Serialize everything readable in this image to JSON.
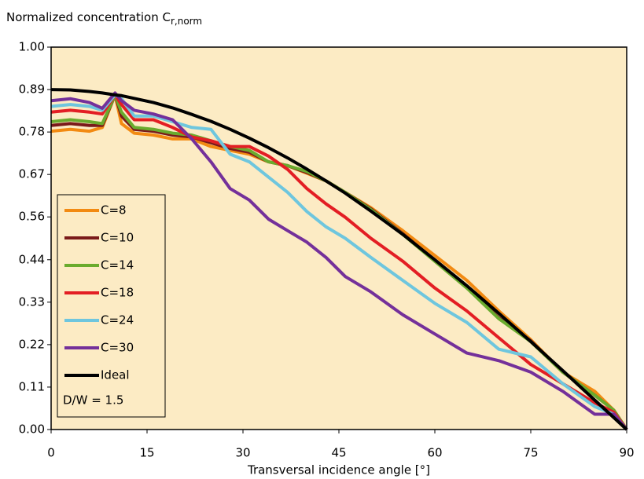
{
  "chart_data": {
    "type": "line",
    "title": "Normalized concentration C",
    "title_subscript": "r,norm",
    "x_label": "Transversal incidence angle [°]",
    "annotation": "D/W = 1.5",
    "xlim": [
      0,
      90
    ],
    "xticks": [
      0,
      15,
      30,
      45,
      60,
      75,
      90
    ],
    "ylim": [
      0,
      1
    ],
    "yticks": [
      {
        "value": 0,
        "label": "0.00"
      },
      {
        "value": 0.111,
        "label": "0.11"
      },
      {
        "value": 0.222,
        "label": "0.22"
      },
      {
        "value": 0.333,
        "label": "0.33"
      },
      {
        "value": 0.444,
        "label": "0.44"
      },
      {
        "value": 0.556,
        "label": "0.56"
      },
      {
        "value": 0.667,
        "label": "0.67"
      },
      {
        "value": 0.778,
        "label": "0.78"
      },
      {
        "value": 0.889,
        "label": "0.89"
      },
      {
        "value": 1,
        "label": "1.00"
      }
    ],
    "background": "#fcebc4",
    "x": [
      0,
      3,
      6,
      8,
      10,
      11,
      13,
      16,
      19,
      22,
      25,
      28,
      31,
      34,
      37,
      40,
      43,
      46,
      50,
      55,
      60,
      65,
      70,
      75,
      80,
      85,
      88,
      90
    ],
    "series": [
      {
        "name": "C=8",
        "color": "#f28a12",
        "values": [
          0.78,
          0.785,
          0.78,
          0.79,
          0.875,
          0.8,
          0.775,
          0.77,
          0.76,
          0.76,
          0.74,
          0.73,
          0.72,
          0.7,
          0.69,
          0.67,
          0.65,
          0.62,
          0.58,
          0.52,
          0.455,
          0.39,
          0.31,
          0.235,
          0.15,
          0.1,
          0.05,
          0
        ]
      },
      {
        "name": "C=10",
        "color": "#7a1a1a",
        "values": [
          0.795,
          0.8,
          0.795,
          0.795,
          0.875,
          0.82,
          0.785,
          0.78,
          0.77,
          0.765,
          0.75,
          0.735,
          0.725,
          0.7,
          0.69,
          0.672,
          0.65,
          0.62,
          0.577,
          0.512,
          0.442,
          0.372,
          0.292,
          0.232,
          0.15,
          0.09,
          0.05,
          0
        ]
      },
      {
        "name": "C=14",
        "color": "#6aab2e",
        "values": [
          0.805,
          0.81,
          0.805,
          0.8,
          0.875,
          0.83,
          0.79,
          0.785,
          0.775,
          0.77,
          0.755,
          0.74,
          0.73,
          0.7,
          0.69,
          0.675,
          0.65,
          0.62,
          0.575,
          0.51,
          0.44,
          0.37,
          0.29,
          0.23,
          0.15,
          0.09,
          0.05,
          0
        ]
      },
      {
        "name": "C=18",
        "color": "#e31e24",
        "values": [
          0.83,
          0.835,
          0.83,
          0.825,
          0.875,
          0.85,
          0.81,
          0.81,
          0.79,
          0.765,
          0.755,
          0.74,
          0.74,
          0.715,
          0.68,
          0.63,
          0.59,
          0.555,
          0.5,
          0.44,
          0.37,
          0.31,
          0.24,
          0.17,
          0.12,
          0.07,
          0.045,
          0
        ]
      },
      {
        "name": "C=24",
        "color": "#6ec6de",
        "values": [
          0.845,
          0.85,
          0.845,
          0.835,
          0.875,
          0.865,
          0.82,
          0.82,
          0.805,
          0.79,
          0.785,
          0.72,
          0.7,
          0.66,
          0.62,
          0.57,
          0.53,
          0.5,
          0.45,
          0.39,
          0.33,
          0.28,
          0.21,
          0.19,
          0.12,
          0.06,
          0.04,
          0
        ]
      },
      {
        "name": "C=30",
        "color": "#74309a",
        "values": [
          0.86,
          0.865,
          0.855,
          0.84,
          0.88,
          0.86,
          0.835,
          0.825,
          0.81,
          0.76,
          0.7,
          0.63,
          0.6,
          0.55,
          0.52,
          0.49,
          0.45,
          0.4,
          0.36,
          0.3,
          0.25,
          0.2,
          0.18,
          0.15,
          0.1,
          0.04,
          0.04,
          0
        ]
      },
      {
        "name": "Ideal",
        "color": "#000000",
        "values": [
          0.889,
          0.888,
          0.884,
          0.88,
          0.875,
          0.873,
          0.866,
          0.855,
          0.841,
          0.824,
          0.806,
          0.785,
          0.762,
          0.737,
          0.71,
          0.681,
          0.65,
          0.618,
          0.571,
          0.51,
          0.444,
          0.376,
          0.304,
          0.23,
          0.154,
          0.077,
          0.031,
          0
        ]
      }
    ]
  }
}
